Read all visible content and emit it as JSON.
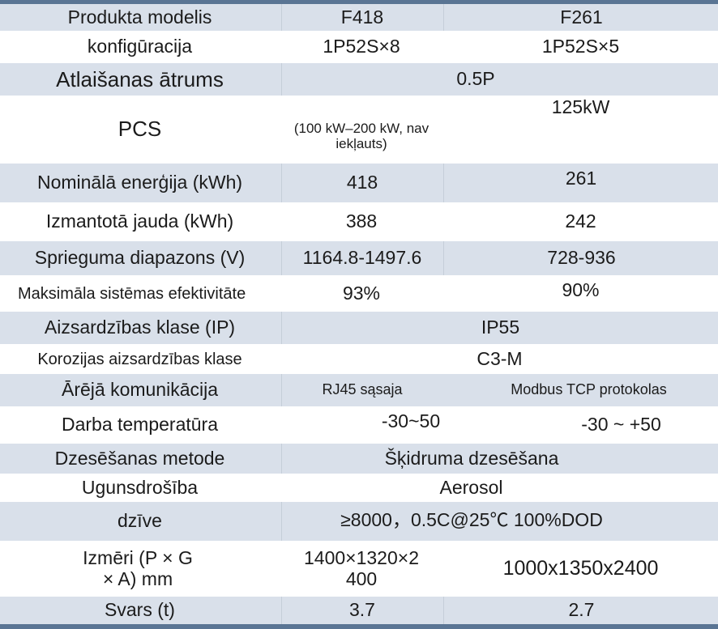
{
  "rows": [
    {
      "label": "Produkta modelis",
      "f418": "F418",
      "f261": "F261"
    },
    {
      "label": "konfigūracija",
      "f418": "1P52S×8",
      "f261": "1P52S×5"
    },
    {
      "label": "Atlaišanas ātrums",
      "both": "0.5P"
    },
    {
      "label": "PCS",
      "f418": "(100 kW–200 kW, nav iekļauts)",
      "f261": "125kW"
    },
    {
      "label": "Nominālā enerģija (kWh)",
      "f418": "418",
      "f261": "261"
    },
    {
      "label": "Izmantotā jauda (kWh)",
      "f418": "388",
      "f261": "242"
    },
    {
      "label": "Sprieguma diapazons (V)",
      "f418": "1164.8-1497.6",
      "f261": "728-936"
    },
    {
      "label": "Maksimāla sistēmas efektivitāte",
      "f418": "93%",
      "f261": "90%"
    },
    {
      "label": "Aizsardzības klase (IP)",
      "both": "IP55"
    },
    {
      "label": "Korozijas aizsardzības klase",
      "both": "C3-M"
    },
    {
      "label": "Ārējā komunikācija",
      "f418": "RJ45 sąsaja",
      "f261": "Modbus TCP protokolas"
    },
    {
      "label": "Darba temperatūra",
      "f418": "-30~50",
      "f261": "-30 ~ +50"
    },
    {
      "label": "Dzesēšanas metode",
      "both": "Šķidruma dzesēšana"
    },
    {
      "label": "Ugunsdrošība",
      "both": "Aerosol"
    },
    {
      "label": "dzīve",
      "both": "≥8000，0.5C@25℃ 100%DOD"
    },
    {
      "label": "Izmēri (P × G × A) mm",
      "f418": "1400×1320×2 400",
      "f261": "1000x1350x2400"
    },
    {
      "label": "Svars (t)",
      "f418": "3.7",
      "f261": "2.7"
    }
  ],
  "colors": {
    "shade": "#d9e0ea",
    "rule": "#5a7594"
  }
}
